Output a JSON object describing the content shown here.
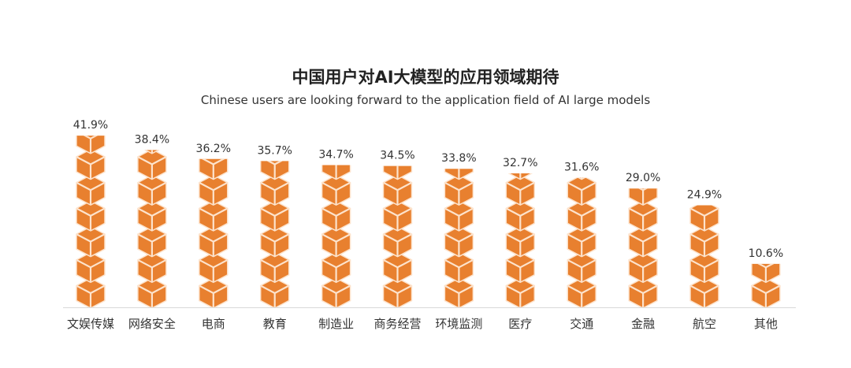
{
  "chart_data": {
    "type": "bar",
    "style": "pictogram-cubes",
    "title": "中国用户对AI大模型的应用领域期待",
    "subtitle": "Chinese users are looking forward to the application field of AI large models",
    "categories": [
      "文娱传媒",
      "网络安全",
      "电商",
      "教育",
      "制造业",
      "商务经营",
      "环境监测",
      "医疗",
      "交通",
      "金融",
      "航空",
      "其他"
    ],
    "values": [
      41.9,
      38.4,
      36.2,
      35.7,
      34.7,
      34.5,
      33.8,
      32.7,
      31.6,
      29.0,
      24.9,
      10.6
    ],
    "value_labels": [
      "41.9%",
      "38.4%",
      "36.2%",
      "35.7%",
      "34.7%",
      "34.5%",
      "33.8%",
      "32.7%",
      "31.6%",
      "29.0%",
      "24.9%",
      "10.6%"
    ],
    "unit": "%",
    "grid": false,
    "legend": "none",
    "colors": {
      "bar": "#e8802f",
      "cube_edge": "#fde3cc",
      "axis": "#d9d9d9",
      "text": "#333333"
    }
  }
}
